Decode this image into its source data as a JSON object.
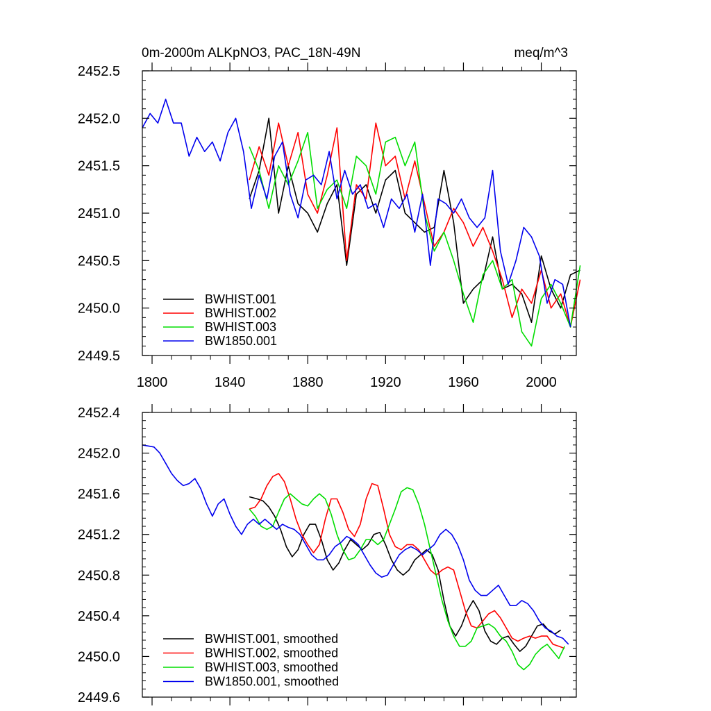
{
  "chart_data": [
    {
      "type": "line",
      "title_left": "0m-2000m ALKpNO3, PAC_18N-49N",
      "title_right": "meq/m^3",
      "xlabel": "",
      "ylabel": "",
      "xlim": [
        1795,
        2018
      ],
      "ylim": [
        2449.5,
        2452.5
      ],
      "xticks": [
        1800,
        1840,
        1880,
        1920,
        1960,
        2000
      ],
      "yticks": [
        2449.5,
        2450.0,
        2450.5,
        2451.0,
        2451.5,
        2452.0,
        2452.5
      ],
      "ytick_labels": [
        "2449.5",
        "2450.0",
        "2450.5",
        "2451.0",
        "2451.5",
        "2452.0",
        "2452.5"
      ],
      "legend_position": "bottom-left",
      "series": [
        {
          "name": "BWHIST.001",
          "color": "#000000",
          "x_start": 1850,
          "x_step": 5,
          "values": [
            2451.15,
            2451.45,
            2452.0,
            2451.0,
            2451.5,
            2451.1,
            2451.0,
            2450.8,
            2451.1,
            2451.3,
            2450.45,
            2451.2,
            2451.3,
            2451.0,
            2451.35,
            2451.45,
            2451.0,
            2450.9,
            2450.8,
            2450.85,
            2451.45,
            2450.9,
            2450.05,
            2450.2,
            2450.3,
            2450.75,
            2450.2,
            2450.25,
            2450.15,
            2449.85,
            2450.55,
            2450.2,
            2450.0,
            2450.35,
            2450.4
          ]
        },
        {
          "name": "BWHIST.002",
          "color": "#ff0000",
          "x_start": 1850,
          "x_step": 5,
          "values": [
            2451.35,
            2451.7,
            2451.4,
            2451.95,
            2451.5,
            2451.85,
            2451.2,
            2451.0,
            2451.4,
            2451.9,
            2450.5,
            2451.3,
            2451.15,
            2451.95,
            2451.5,
            2451.6,
            2451.15,
            2451.55,
            2451.1,
            2450.65,
            2450.8,
            2451.05,
            2450.9,
            2450.65,
            2450.85,
            2450.6,
            2450.3,
            2449.9,
            2450.2,
            2450.05,
            2450.4,
            2450.0,
            2450.15,
            2449.8,
            2450.3
          ]
        },
        {
          "name": "BWHIST.003",
          "color": "#00dd00",
          "x_start": 1850,
          "x_step": 5,
          "values": [
            2451.7,
            2451.45,
            2451.05,
            2451.5,
            2451.3,
            2451.55,
            2451.85,
            2451.05,
            2451.25,
            2451.35,
            2451.05,
            2451.6,
            2451.5,
            2451.2,
            2451.75,
            2451.8,
            2451.5,
            2451.75,
            2451.0,
            2450.6,
            2450.8,
            2450.5,
            2450.15,
            2449.85,
            2450.35,
            2450.5,
            2450.2,
            2450.3,
            2449.75,
            2449.6,
            2450.1,
            2450.25,
            2450.05,
            2449.8,
            2450.45
          ]
        },
        {
          "name": "BW1850.001",
          "color": "#0000ee",
          "x_start": 1795,
          "x_step": 4,
          "values": [
            2451.9,
            2452.05,
            2451.95,
            2452.2,
            2451.95,
            2451.95,
            2451.6,
            2451.8,
            2451.65,
            2451.75,
            2451.55,
            2451.85,
            2452.0,
            2451.65,
            2451.05,
            2451.4,
            2451.15,
            2451.6,
            2451.75,
            2451.2,
            2450.95,
            2451.35,
            2451.4,
            2451.3,
            2451.65,
            2451.15,
            2451.45,
            2451.2,
            2451.3,
            2451.05,
            2451.1,
            2450.85,
            2451.15,
            2451.05,
            2451.2,
            2450.8,
            2451.2,
            2450.45,
            2451.15,
            2451.1,
            2451.0,
            2451.15,
            2450.95,
            2450.85,
            2450.95,
            2451.45,
            2450.6,
            2450.25,
            2450.5,
            2450.85,
            2450.75,
            2450.55,
            2450.05,
            2450.3,
            2450.25,
            2449.8
          ]
        }
      ]
    },
    {
      "type": "line",
      "xlabel": "",
      "ylabel": "",
      "xlim": [
        1795,
        2018
      ],
      "ylim": [
        2449.6,
        2452.4
      ],
      "xticks": [
        1800,
        1840,
        1880,
        1920,
        1960,
        2000
      ],
      "yticks": [
        2449.6,
        2450.0,
        2450.4,
        2450.8,
        2451.2,
        2451.6,
        2452.0,
        2452.4
      ],
      "ytick_labels": [
        "2449.6",
        "2450.0",
        "2450.4",
        "2450.8",
        "2451.2",
        "2451.6",
        "2452.0",
        "2452.4"
      ],
      "legend_position": "bottom-left",
      "series": [
        {
          "name": "BWHIST.001, smoothed",
          "color": "#000000",
          "x": [
            1850,
            1854,
            1857,
            1860,
            1863,
            1866,
            1869,
            1872,
            1875,
            1878,
            1881,
            1884,
            1887,
            1890,
            1893,
            1896,
            1899,
            1902,
            1905,
            1908,
            1911,
            1914,
            1917,
            1920,
            1923,
            1926,
            1929,
            1932,
            1935,
            1938,
            1941,
            1944,
            1947,
            1950,
            1953,
            1956,
            1959,
            1962,
            1965,
            1968,
            1971,
            1974,
            1977,
            1980,
            1983,
            1986,
            1989,
            1992,
            1995,
            1998,
            2001,
            2004,
            2007,
            2010
          ],
          "values": [
            2451.57,
            2451.55,
            2451.53,
            2451.47,
            2451.38,
            2451.25,
            2451.08,
            2450.98,
            2451.05,
            2451.2,
            2451.3,
            2451.3,
            2451.15,
            2450.95,
            2450.85,
            2450.92,
            2451.05,
            2451.15,
            2451.1,
            2451.05,
            2451.1,
            2451.2,
            2451.22,
            2451.1,
            2450.95,
            2450.85,
            2450.8,
            2450.85,
            2450.95,
            2451.0,
            2451.05,
            2451.0,
            2450.85,
            2450.55,
            2450.3,
            2450.2,
            2450.3,
            2450.45,
            2450.55,
            2450.45,
            2450.25,
            2450.15,
            2450.12,
            2450.18,
            2450.2,
            2450.12,
            2450.05,
            2450.1,
            2450.2,
            2450.3,
            2450.32,
            2450.25,
            2450.22,
            2450.26
          ]
        },
        {
          "name": "BWHIST.002, smoothed",
          "color": "#ff0000",
          "x": [
            1850,
            1853,
            1856,
            1859,
            1862,
            1865,
            1868,
            1871,
            1874,
            1877,
            1880,
            1883,
            1886,
            1889,
            1892,
            1895,
            1898,
            1901,
            1904,
            1907,
            1910,
            1913,
            1916,
            1919,
            1922,
            1925,
            1928,
            1931,
            1934,
            1937,
            1940,
            1943,
            1946,
            1949,
            1952,
            1955,
            1958,
            1961,
            1964,
            1967,
            1970,
            1973,
            1976,
            1979,
            1982,
            1985,
            1988,
            1991,
            1994,
            1997,
            2000,
            2003,
            2006,
            2009,
            2012
          ],
          "values": [
            2451.45,
            2451.47,
            2451.55,
            2451.68,
            2451.77,
            2451.8,
            2451.72,
            2451.55,
            2451.35,
            2451.2,
            2451.1,
            2451.02,
            2451.1,
            2451.35,
            2451.55,
            2451.55,
            2451.42,
            2451.25,
            2451.18,
            2451.3,
            2451.55,
            2451.7,
            2451.68,
            2451.45,
            2451.2,
            2451.08,
            2451.05,
            2451.1,
            2451.1,
            2451.05,
            2450.95,
            2450.85,
            2450.8,
            2450.85,
            2450.88,
            2450.85,
            2450.65,
            2450.45,
            2450.3,
            2450.28,
            2450.35,
            2450.42,
            2450.45,
            2450.38,
            2450.28,
            2450.18,
            2450.15,
            2450.18,
            2450.2,
            2450.18,
            2450.2,
            2450.2,
            2450.12,
            2450.1,
            2450.08
          ]
        },
        {
          "name": "BWHIST.003, smoothed",
          "color": "#00dd00",
          "x": [
            1850,
            1853,
            1856,
            1859,
            1862,
            1865,
            1868,
            1871,
            1874,
            1877,
            1880,
            1883,
            1886,
            1889,
            1892,
            1895,
            1898,
            1901,
            1904,
            1907,
            1910,
            1913,
            1916,
            1919,
            1922,
            1925,
            1928,
            1931,
            1934,
            1937,
            1940,
            1943,
            1946,
            1949,
            1952,
            1955,
            1958,
            1961,
            1964,
            1967,
            1970,
            1973,
            1976,
            1979,
            1982,
            1985,
            1988,
            1991,
            1994,
            1997,
            2000,
            2003,
            2006,
            2009,
            2012
          ],
          "values": [
            2451.45,
            2451.38,
            2451.28,
            2451.25,
            2451.28,
            2451.42,
            2451.55,
            2451.6,
            2451.55,
            2451.5,
            2451.48,
            2451.55,
            2451.6,
            2451.55,
            2451.4,
            2451.2,
            2451.05,
            2450.95,
            2450.97,
            2451.05,
            2451.15,
            2451.15,
            2451.1,
            2451.15,
            2451.3,
            2451.45,
            2451.62,
            2451.66,
            2451.64,
            2451.5,
            2451.3,
            2451.05,
            2450.8,
            2450.55,
            2450.35,
            2450.2,
            2450.1,
            2450.1,
            2450.15,
            2450.28,
            2450.3,
            2450.32,
            2450.28,
            2450.2,
            2450.15,
            2450.05,
            2449.92,
            2449.87,
            2449.92,
            2450.02,
            2450.08,
            2450.12,
            2450.05,
            2449.98,
            2450.1
          ]
        },
        {
          "name": "BW1850.001, smoothed",
          "color": "#0000ee",
          "x": [
            1795,
            1798,
            1801,
            1804,
            1807,
            1810,
            1813,
            1816,
            1819,
            1822,
            1825,
            1828,
            1831,
            1834,
            1837,
            1840,
            1843,
            1846,
            1849,
            1852,
            1855,
            1858,
            1861,
            1864,
            1867,
            1870,
            1873,
            1876,
            1879,
            1882,
            1885,
            1888,
            1891,
            1894,
            1897,
            1900,
            1903,
            1906,
            1909,
            1912,
            1915,
            1918,
            1921,
            1924,
            1927,
            1930,
            1933,
            1936,
            1939,
            1942,
            1945,
            1948,
            1951,
            1954,
            1957,
            1960,
            1963,
            1966,
            1969,
            1972,
            1975,
            1978,
            1981,
            1984,
            1987,
            1990,
            1993,
            1996,
            1999,
            2002,
            2005,
            2008,
            2011,
            2014
          ],
          "values": [
            2452.08,
            2452.07,
            2452.06,
            2452.0,
            2451.9,
            2451.8,
            2451.73,
            2451.68,
            2451.7,
            2451.75,
            2451.65,
            2451.5,
            2451.38,
            2451.5,
            2451.55,
            2451.4,
            2451.28,
            2451.2,
            2451.3,
            2451.35,
            2451.3,
            2451.35,
            2451.3,
            2451.25,
            2451.3,
            2451.27,
            2451.25,
            2451.2,
            2451.1,
            2451.0,
            2450.95,
            2450.95,
            2451.0,
            2451.08,
            2451.12,
            2451.18,
            2451.15,
            2451.1,
            2451.0,
            2450.9,
            2450.82,
            2450.78,
            2450.8,
            2450.9,
            2451.0,
            2451.05,
            2451.08,
            2451.05,
            2451.0,
            2451.05,
            2451.1,
            2451.2,
            2451.25,
            2451.2,
            2451.1,
            2450.95,
            2450.75,
            2450.65,
            2450.6,
            2450.6,
            2450.65,
            2450.7,
            2450.6,
            2450.5,
            2450.5,
            2450.55,
            2450.52,
            2450.45,
            2450.35,
            2450.28,
            2450.25,
            2450.2,
            2450.18,
            2450.12
          ]
        }
      ]
    }
  ]
}
